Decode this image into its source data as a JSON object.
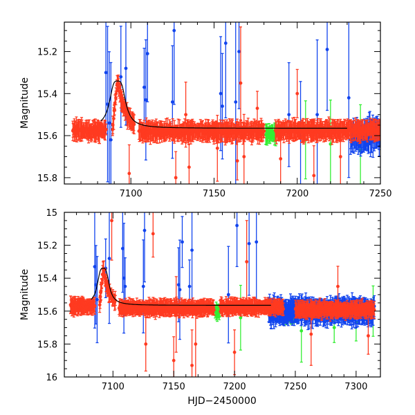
{
  "chart_data": [
    {
      "id": "top",
      "type": "scatter",
      "title": "",
      "xlabel": "",
      "ylabel": "Magnitude",
      "xlim": [
        7060,
        7250
      ],
      "ylim": [
        15.83,
        15.06
      ],
      "y_inverted": true,
      "xticks": [
        7100,
        7150,
        7200,
        7250
      ],
      "yticks": [
        15.2,
        15.4,
        15.6,
        15.8
      ],
      "xtick_labels": [
        "7100",
        "7150",
        "7200",
        "7250"
      ],
      "ytick_labels": [
        "15.2",
        "15.4",
        "15.6",
        "15.8"
      ],
      "grid": false,
      "model_curve": {
        "name": "model",
        "color": "#000000",
        "baseline": 15.565,
        "peak_x": 7092,
        "peak_mag": 15.34,
        "x_start": 7082,
        "x_end": 7230
      },
      "series": [
        {
          "name": "red",
          "color": "#ff3a20",
          "segments": [
            {
              "x0": 7065,
              "x1": 7085,
              "base": 15.575,
              "bump": 0.0
            },
            {
              "x0": 7089,
              "x1": 7102,
              "base": 15.565,
              "bump": 0.23
            },
            {
              "x0": 7105,
              "x1": 7180,
              "base": 15.58,
              "bump": 0.0
            },
            {
              "x0": 7187,
              "x1": 7250,
              "base": 15.575,
              "bump": 0.0
            }
          ],
          "outliers": [
            [
              7099,
              15.78
            ],
            [
              7127,
              15.8
            ],
            [
              7133,
              15.5
            ],
            [
              7135,
              15.75
            ],
            [
              7152,
              15.66
            ],
            [
              7164,
              15.72
            ],
            [
              7166,
              15.35
            ],
            [
              7168,
              15.7
            ],
            [
              7176,
              15.47
            ],
            [
              7190,
              15.71
            ],
            [
              7200,
              15.4
            ],
            [
              7210,
              15.79
            ],
            [
              7226,
              15.7
            ]
          ]
        },
        {
          "name": "green",
          "color": "#33ee33",
          "segments": [
            {
              "x0": 7181,
              "x1": 7187,
              "base": 15.59,
              "bump": 0.0
            },
            {
              "x0": 7237,
              "x1": 7239,
              "base": 15.6,
              "bump": 0.0
            }
          ],
          "outliers": [
            [
              7205,
              15.62
            ],
            [
              7220,
              15.64
            ],
            [
              7238,
              15.67
            ]
          ]
        },
        {
          "name": "blue",
          "color": "#1144ee",
          "segments": [
            {
              "x0": 7232,
              "x1": 7250,
              "base": 15.6,
              "bump": 0.0
            }
          ],
          "outliers": [
            [
              7085,
              15.3
            ],
            [
              7086,
              15.45
            ],
            [
              7087,
              15.54
            ],
            [
              7088,
              15.62
            ],
            [
              7094,
              15.32
            ],
            [
              7097,
              15.28
            ],
            [
              7108,
              15.37
            ],
            [
              7109,
              15.43
            ],
            [
              7110,
              15.21
            ],
            [
              7125,
              15.44
            ],
            [
              7126,
              15.1
            ],
            [
              7154,
              15.4
            ],
            [
              7155,
              15.46
            ],
            [
              7157,
              15.16
            ],
            [
              7163,
              15.44
            ],
            [
              7165,
              15.2
            ],
            [
              7195,
              15.5
            ],
            [
              7202,
              15.6
            ],
            [
              7212,
              15.5
            ],
            [
              7218,
              15.19
            ],
            [
              7231,
              15.42
            ]
          ]
        }
      ]
    },
    {
      "id": "bottom",
      "type": "scatter",
      "title": "",
      "xlabel": "HJD−2450000",
      "ylabel": "Magnitude",
      "xlim": [
        7060,
        7320
      ],
      "ylim": [
        16.0,
        15.0
      ],
      "y_inverted": true,
      "xticks": [
        7100,
        7150,
        7200,
        7250,
        7300
      ],
      "yticks": [
        15.0,
        15.2,
        15.4,
        15.6,
        15.8,
        16.0
      ],
      "xtick_labels": [
        "7100",
        "7150",
        "7200",
        "7250",
        "7300"
      ],
      "ytick_labels": [
        "15",
        "15.2",
        "15.4",
        "15.6",
        "15.8",
        "16"
      ],
      "grid": false,
      "model_curve": {
        "name": "model",
        "color": "#000000",
        "baseline": 15.565,
        "peak_x": 7092,
        "peak_mag": 15.34,
        "x_start": 7082,
        "x_end": 7230
      },
      "series": [
        {
          "name": "red",
          "color": "#ff3a20",
          "segments": [
            {
              "x0": 7065,
              "x1": 7085,
              "base": 15.57,
              "bump": 0.0
            },
            {
              "x0": 7089,
              "x1": 7102,
              "base": 15.565,
              "bump": 0.23
            },
            {
              "x0": 7105,
              "x1": 7183,
              "base": 15.58,
              "bump": 0.0
            },
            {
              "x0": 7188,
              "x1": 7240,
              "base": 15.575,
              "bump": 0.0
            },
            {
              "x0": 7250,
              "x1": 7315,
              "base": 15.59,
              "bump": 0.0
            }
          ],
          "outliers": [
            [
              7099,
              15.05
            ],
            [
              7127,
              15.8
            ],
            [
              7133,
              15.13
            ],
            [
              7150,
              15.9
            ],
            [
              7152,
              15.62
            ],
            [
              7165,
              15.93
            ],
            [
              7168,
              15.8
            ],
            [
              7200,
              15.85
            ],
            [
              7210,
              15.3
            ],
            [
              7263,
              15.74
            ],
            [
              7285,
              15.45
            ],
            [
              7310,
              15.75
            ]
          ]
        },
        {
          "name": "green",
          "color": "#33ee33",
          "segments": [
            {
              "x0": 7184,
              "x1": 7188,
              "base": 15.6,
              "bump": 0.0
            },
            {
              "x0": 7240,
              "x1": 7250,
              "base": 15.62,
              "bump": 0.0
            }
          ],
          "outliers": [
            [
              7205,
              15.64
            ],
            [
              7255,
              15.72
            ],
            [
              7282,
              15.7
            ],
            [
              7300,
              15.67
            ],
            [
              7314,
              15.6
            ]
          ]
        },
        {
          "name": "blue",
          "color": "#1144ee",
          "segments": [
            {
              "x0": 7228,
              "x1": 7315,
              "base": 15.6,
              "bump": 0.0
            }
          ],
          "outliers": [
            [
              7085,
              15.33
            ],
            [
              7086,
              15.44
            ],
            [
              7087,
              15.53
            ],
            [
              7094,
              15.34
            ],
            [
              7097,
              15.28
            ],
            [
              7108,
              15.22
            ],
            [
              7109,
              15.4
            ],
            [
              7110,
              15.45
            ],
            [
              7125,
              15.45
            ],
            [
              7126,
              15.11
            ],
            [
              7154,
              15.44
            ],
            [
              7155,
              15.47
            ],
            [
              7157,
              15.18
            ],
            [
              7163,
              15.45
            ],
            [
              7165,
              15.23
            ],
            [
              7195,
              15.5
            ],
            [
              7202,
              15.08
            ],
            [
              7212,
              15.19
            ],
            [
              7218,
              15.18
            ]
          ]
        }
      ]
    }
  ]
}
